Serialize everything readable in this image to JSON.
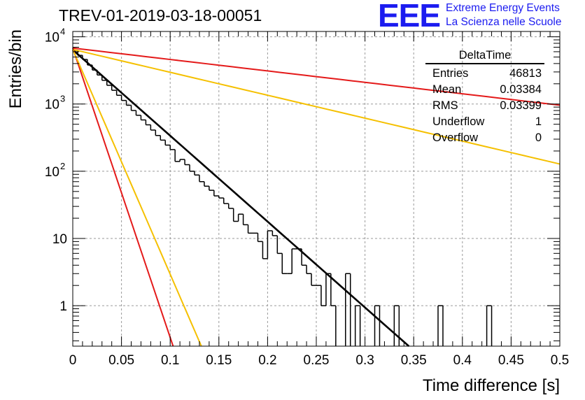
{
  "title": "TREV-01-2019-03-18-00051",
  "brand": {
    "mark": "EEE",
    "line1": "Extreme Energy Events",
    "line2": "La Scienza nelle Scuole",
    "color": "#1c1cf0"
  },
  "stats_box": {
    "title": "DeltaTime",
    "rows": [
      {
        "label": "Entries",
        "value": "46813"
      },
      {
        "label": "Mean",
        "value": "0.03384"
      },
      {
        "label": "RMS",
        "value": "0.03399"
      },
      {
        "label": "Underflow",
        "value": "1"
      },
      {
        "label": "Overflow",
        "value": "0"
      }
    ]
  },
  "chart_data": {
    "type": "line",
    "title": "TREV-01-2019-03-18-00051",
    "xlabel": "Time difference [s]",
    "ylabel": "Entries/bin",
    "xlim": [
      0,
      0.5
    ],
    "ylim": [
      0.25,
      12000
    ],
    "yscale": "log",
    "grid": true,
    "x_ticks": [
      "0",
      "0.05",
      "0.1",
      "0.15",
      "0.2",
      "0.25",
      "0.3",
      "0.35",
      "0.4",
      "0.45",
      "0.5"
    ],
    "y_ticks": [
      {
        "value": 1,
        "label": "1"
      },
      {
        "value": 10,
        "label": "10"
      },
      {
        "value": 100,
        "label": "10",
        "exp": "2"
      },
      {
        "value": 1000,
        "label": "10",
        "exp": "3"
      },
      {
        "value": 10000,
        "label": "10",
        "exp": "4"
      }
    ],
    "histogram": {
      "name": "DeltaTime",
      "bin_width": 0.005,
      "color": "#000000",
      "x_start": 0,
      "values": [
        6300,
        5300,
        4600,
        3800,
        3200,
        2700,
        2250,
        1900,
        1600,
        1350,
        1130,
        960,
        800,
        680,
        580,
        490,
        410,
        340,
        290,
        245,
        210,
        140,
        150,
        125,
        100,
        88,
        70,
        60,
        52,
        43,
        40,
        33,
        28,
        18,
        23,
        16,
        12,
        12,
        9,
        5,
        13,
        11,
        6,
        3,
        3,
        7,
        7,
        4,
        3,
        2,
        2,
        1,
        3,
        1,
        0,
        0,
        3,
        0,
        1,
        0,
        0,
        0,
        1,
        0,
        0,
        0,
        1,
        0,
        0,
        0,
        0,
        0,
        0,
        0,
        0,
        1,
        0,
        0,
        0,
        0,
        0,
        0,
        0,
        0,
        0,
        1,
        0,
        0,
        0,
        0
      ]
    },
    "fits": [
      {
        "color": "#000000",
        "x": [
          0,
          0.345
        ],
        "y": [
          6400,
          0.25
        ]
      },
      {
        "color": "#e41a1a",
        "x": [
          0,
          0.5
        ],
        "y": [
          6800,
          960
        ]
      },
      {
        "color": "#f5c000",
        "x": [
          0,
          0.5
        ],
        "y": [
          6500,
          128
        ]
      },
      {
        "color": "#e41a1a",
        "x": [
          0,
          0.103
        ],
        "y": [
          6800,
          0.25
        ]
      },
      {
        "color": "#f5c000",
        "x": [
          0,
          0.132
        ],
        "y": [
          6500,
          0.25
        ]
      }
    ]
  }
}
